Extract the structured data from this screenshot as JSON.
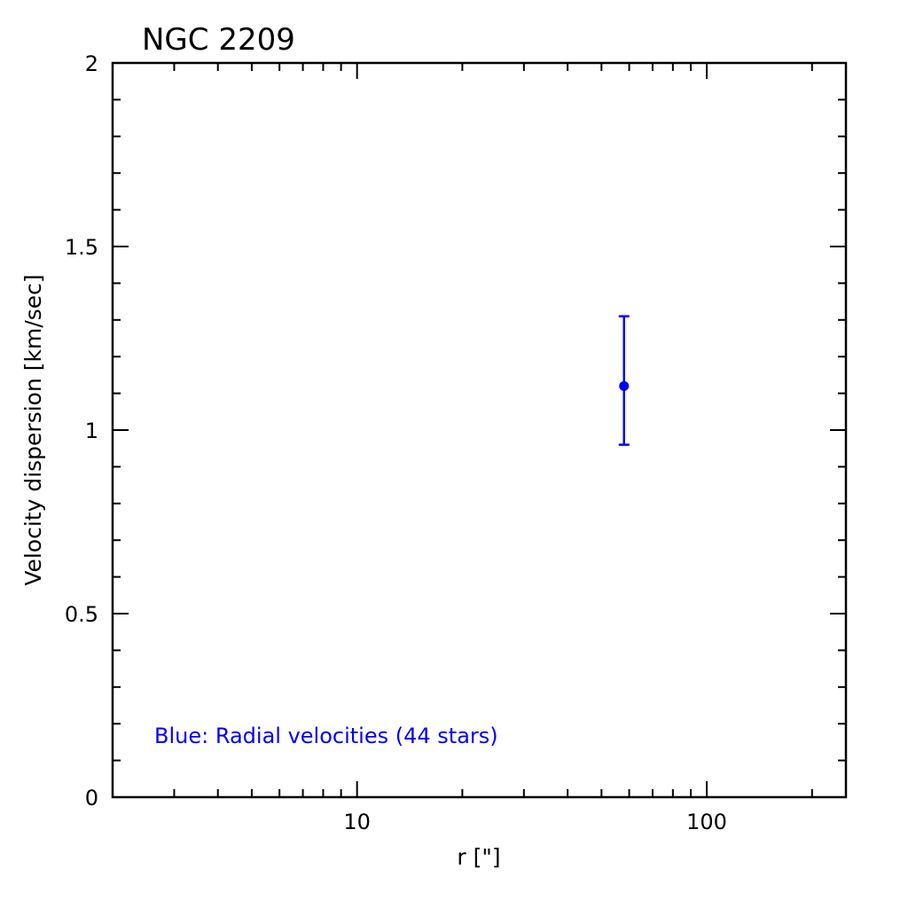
{
  "chart_data": {
    "type": "scatter",
    "title": "NGC 2209",
    "xlabel": "r [\"]",
    "ylabel": "Velocity dispersion [km/sec]",
    "x_scale": "log",
    "xlim": [
      2,
      250
    ],
    "ylim": [
      0,
      2
    ],
    "x_major_ticks": [
      10,
      100
    ],
    "x_tick_labels": [
      "10",
      "100"
    ],
    "y_major_ticks": [
      0,
      0.5,
      1,
      1.5,
      2
    ],
    "y_tick_labels": [
      "0",
      "0.5",
      "1",
      "1.5",
      "2"
    ],
    "grid": false,
    "series": [
      {
        "color": "#0000ff",
        "points": [
          {
            "x": 58,
            "y": 1.12,
            "y_err_low": 0.96,
            "y_err_high": 1.31
          }
        ]
      }
    ],
    "annotation": {
      "text": "Blue: Radial velocities (44 stars)",
      "color": "#0000ff",
      "position": "bottom-left"
    }
  }
}
